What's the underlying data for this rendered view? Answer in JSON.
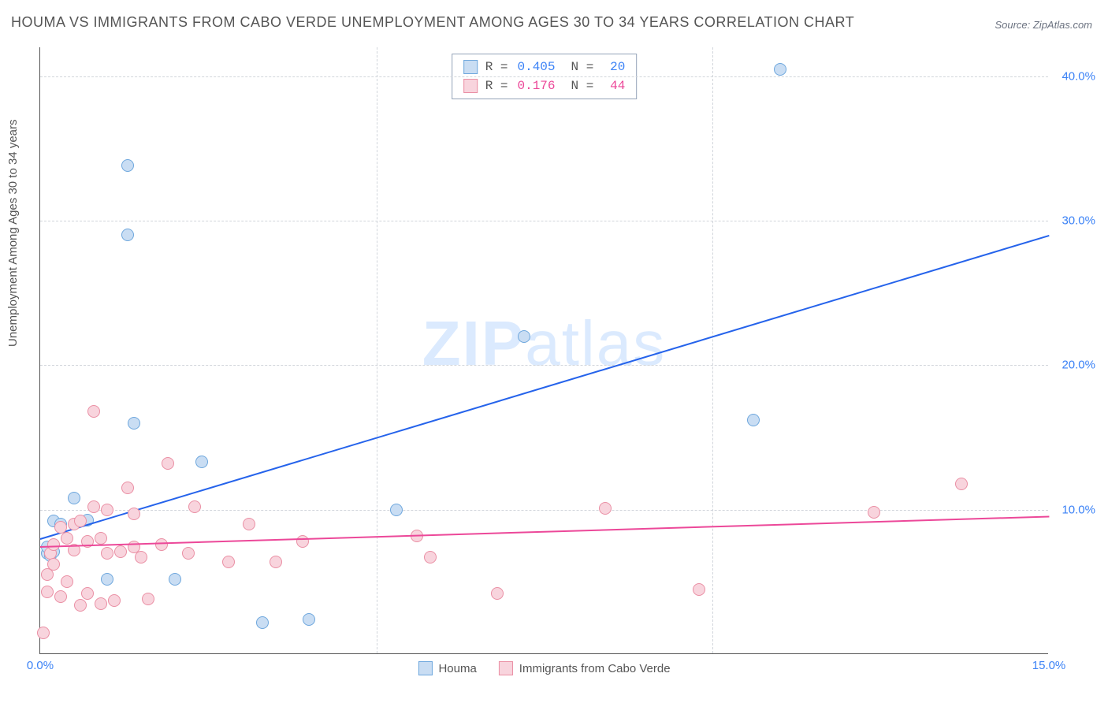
{
  "title": "HOUMA VS IMMIGRANTS FROM CABO VERDE UNEMPLOYMENT AMONG AGES 30 TO 34 YEARS CORRELATION CHART",
  "source": "Source: ZipAtlas.com",
  "ylabel": "Unemployment Among Ages 30 to 34 years",
  "watermark_left": "ZIP",
  "watermark_right": "atlas",
  "chart": {
    "type": "scatter",
    "xlim": [
      0,
      15
    ],
    "ylim": [
      0,
      42
    ],
    "xticks": [
      {
        "v": 0,
        "label": "0.0%"
      },
      {
        "v": 15,
        "label": "15.0%"
      }
    ],
    "yticks": [
      {
        "v": 10,
        "label": "10.0%"
      },
      {
        "v": 20,
        "label": "20.0%"
      },
      {
        "v": 30,
        "label": "30.0%"
      },
      {
        "v": 40,
        "label": "40.0%"
      }
    ],
    "grid_x": [
      5,
      10
    ],
    "grid_color": "#d1d5db",
    "background": "#ffffff",
    "ytick_color": "#3b82f6",
    "xtick_color": "#3b82f6",
    "series": [
      {
        "name": "Houma",
        "marker_fill": "#c9ddf3",
        "marker_stroke": "#6ea7dd",
        "marker_size": 16,
        "R": "0.405",
        "N": "20",
        "stat_color": "#3b82f6",
        "trend": {
          "color": "#2563eb",
          "width": 2,
          "y_at_x0": 8.0,
          "y_at_xmax": 29.0
        },
        "points": [
          [
            0.1,
            7.0
          ],
          [
            0.1,
            7.4
          ],
          [
            0.15,
            6.8
          ],
          [
            0.2,
            7.1
          ],
          [
            0.2,
            9.2
          ],
          [
            0.3,
            9.0
          ],
          [
            0.5,
            10.8
          ],
          [
            0.7,
            9.3
          ],
          [
            1.0,
            5.2
          ],
          [
            1.3,
            29.0
          ],
          [
            1.3,
            33.8
          ],
          [
            1.4,
            16.0
          ],
          [
            2.0,
            5.2
          ],
          [
            2.4,
            13.3
          ],
          [
            3.3,
            2.2
          ],
          [
            4.0,
            2.4
          ],
          [
            5.3,
            10.0
          ],
          [
            7.2,
            22.0
          ],
          [
            10.6,
            16.2
          ],
          [
            11.0,
            40.5
          ]
        ]
      },
      {
        "name": "Immigrants from Cabo Verde",
        "marker_fill": "#f8d4dd",
        "marker_stroke": "#ea8fa4",
        "marker_size": 16,
        "R": "0.176",
        "N": "44",
        "stat_color": "#ec4899",
        "trend": {
          "color": "#ec4899",
          "width": 2,
          "y_at_x0": 7.5,
          "y_at_xmax": 9.6
        },
        "points": [
          [
            0.1,
            4.3
          ],
          [
            0.1,
            5.5
          ],
          [
            0.15,
            7.0
          ],
          [
            0.2,
            6.2
          ],
          [
            0.2,
            7.6
          ],
          [
            0.3,
            4.0
          ],
          [
            0.3,
            8.8
          ],
          [
            0.4,
            5.0
          ],
          [
            0.4,
            8.0
          ],
          [
            0.5,
            7.2
          ],
          [
            0.5,
            9.0
          ],
          [
            0.6,
            3.4
          ],
          [
            0.6,
            9.2
          ],
          [
            0.7,
            4.2
          ],
          [
            0.7,
            7.8
          ],
          [
            0.8,
            10.2
          ],
          [
            0.8,
            16.8
          ],
          [
            0.9,
            3.5
          ],
          [
            0.9,
            8.0
          ],
          [
            1.0,
            7.0
          ],
          [
            1.0,
            10.0
          ],
          [
            1.1,
            3.7
          ],
          [
            1.2,
            7.1
          ],
          [
            1.3,
            11.5
          ],
          [
            1.4,
            7.4
          ],
          [
            1.4,
            9.7
          ],
          [
            1.5,
            6.7
          ],
          [
            1.6,
            3.8
          ],
          [
            1.8,
            7.6
          ],
          [
            1.9,
            13.2
          ],
          [
            2.2,
            7.0
          ],
          [
            2.3,
            10.2
          ],
          [
            2.8,
            6.4
          ],
          [
            3.1,
            9.0
          ],
          [
            3.5,
            6.4
          ],
          [
            3.9,
            7.8
          ],
          [
            5.6,
            8.2
          ],
          [
            5.8,
            6.7
          ],
          [
            6.8,
            4.2
          ],
          [
            8.4,
            10.1
          ],
          [
            9.8,
            4.5
          ],
          [
            12.4,
            9.8
          ],
          [
            13.7,
            11.8
          ],
          [
            0.05,
            1.5
          ]
        ]
      }
    ]
  },
  "legend_bottom": [
    {
      "label": "Houma",
      "fill": "#c9ddf3",
      "stroke": "#6ea7dd"
    },
    {
      "label": "Immigrants from Cabo Verde",
      "fill": "#f8d4dd",
      "stroke": "#ea8fa4"
    }
  ]
}
